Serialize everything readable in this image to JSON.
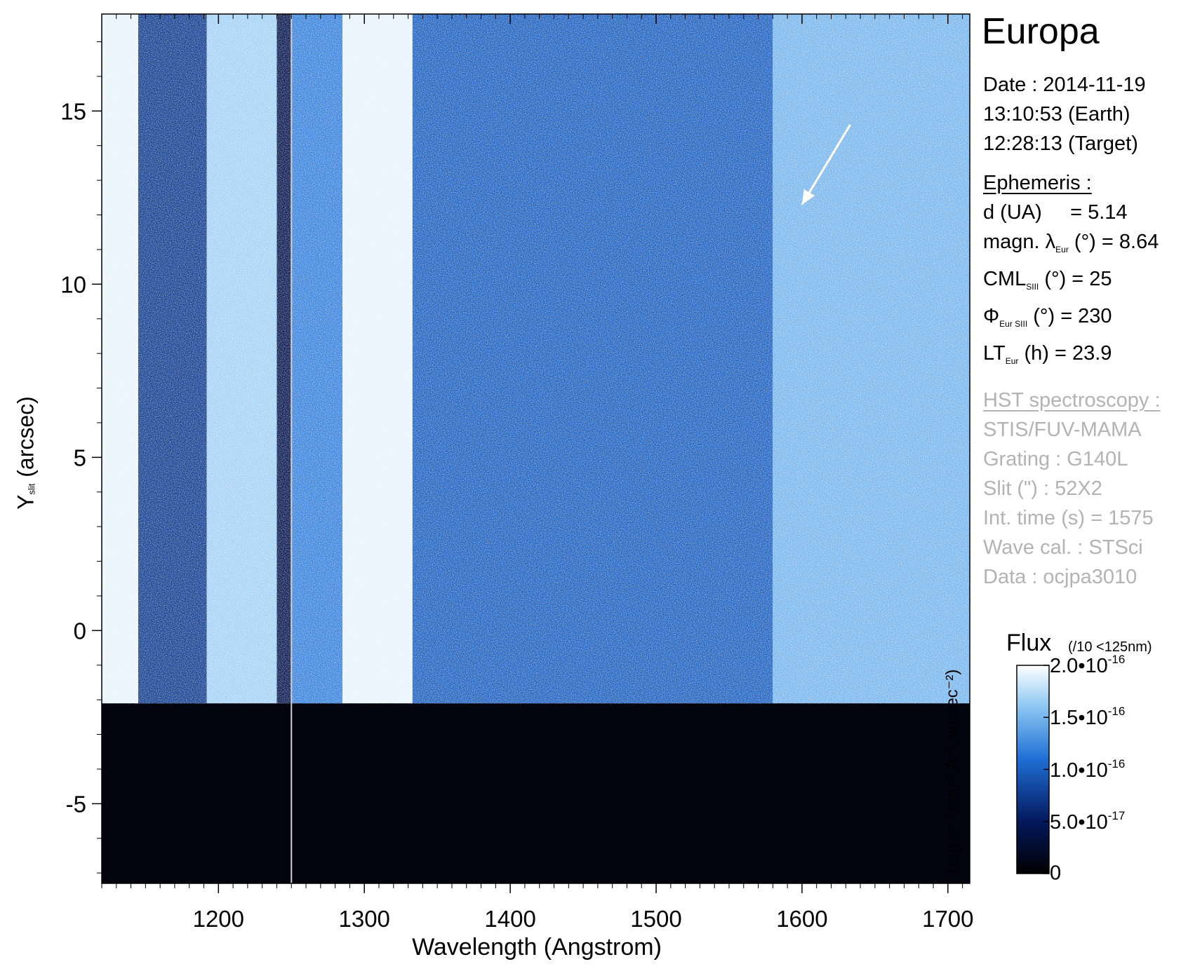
{
  "chart_data": {
    "type": "heatmap",
    "xlabel": "Wavelength (Angstrom)",
    "ylabel_main": "Y",
    "ylabel_sub": "slit",
    "ylabel_unit": "(arcsec)",
    "xlim": [
      1120,
      1715
    ],
    "ylim": [
      -7.3,
      17.8
    ],
    "xticks": [
      "1200",
      "1300",
      "1400",
      "1500",
      "1600",
      "1700"
    ],
    "xtick_values": [
      1200,
      1300,
      1400,
      1500,
      1600,
      1700
    ],
    "yticks": [
      "-5",
      "0",
      "5",
      "10",
      "15"
    ],
    "ytick_values": [
      -5,
      0,
      5,
      10,
      15
    ],
    "data_region_bottom_y": -2.1,
    "vertical_line_x": 1250,
    "annotation_arrow": {
      "from": [
        1633,
        14.6
      ],
      "to": [
        1600,
        12.3
      ]
    },
    "bands": [
      {
        "x": [
          1120,
          1145
        ],
        "level": 0.95
      },
      {
        "x": [
          1145,
          1192
        ],
        "level": 0.35
      },
      {
        "x": [
          1192,
          1240
        ],
        "level": 0.8
      },
      {
        "x": [
          1240,
          1250
        ],
        "level": 0.2
      },
      {
        "x": [
          1250,
          1285
        ],
        "level": 0.55
      },
      {
        "x": [
          1285,
          1333
        ],
        "level": 0.95
      },
      {
        "x": [
          1333,
          1580
        ],
        "level": 0.45
      },
      {
        "x": [
          1580,
          1715
        ],
        "level": 0.7
      }
    ],
    "colorbar": {
      "title": "Flux",
      "note": "(/10 <125nm)",
      "label": "(erg.s⁻¹.cm⁻².A⁻¹.arcsec⁻²)",
      "range": [
        0,
        2e-16
      ],
      "colors": [
        "#000000",
        "#04185c",
        "#1f6fd6",
        "#8cc6f2",
        "#ffffff"
      ],
      "ticks": [
        {
          "value": 2e-16,
          "mantissa": "2.0•10",
          "exp": "-16"
        },
        {
          "value": 1.5e-16,
          "mantissa": "1.5•10",
          "exp": "-16"
        },
        {
          "value": 1e-16,
          "mantissa": "1.0•10",
          "exp": "-16"
        },
        {
          "value": 5e-17,
          "mantissa": "5.0•10",
          "exp": "-17"
        },
        {
          "value": 0,
          "mantissa": "0",
          "exp": ""
        }
      ]
    }
  },
  "info": {
    "object": "Europa",
    "date": "Date : 2014-11-19",
    "time_earth": "13:10:53 (Earth)",
    "time_target": "12:28:13 (Target)",
    "ephemeris_header": "Ephemeris :",
    "d_label": "d (UA)",
    "d_value": "= 5.14",
    "magn_prefix": "magn. λ",
    "magn_sub": "Eur",
    "magn_suffix": "(°)  = 8.64",
    "cml_prefix": "CML",
    "cml_sub": "SIII",
    "cml_suffix": "(°) = 25",
    "phi_prefix": "Φ",
    "phi_sub": "Eur SIII",
    "phi_suffix": "(°) = 230",
    "lt_prefix": "LT",
    "lt_sub": "Eur",
    "lt_suffix": "(h) = 23.9",
    "hst_header": "HST spectroscopy :",
    "instrument": "STIS/FUV-MAMA",
    "grating": "Grating : G140L",
    "slit": "Slit (\") : 52X2",
    "int_time": "Int. time (s) = 1575",
    "wave_cal": "Wave cal. : STSci",
    "data_id": "Data : ocjpa3010"
  }
}
